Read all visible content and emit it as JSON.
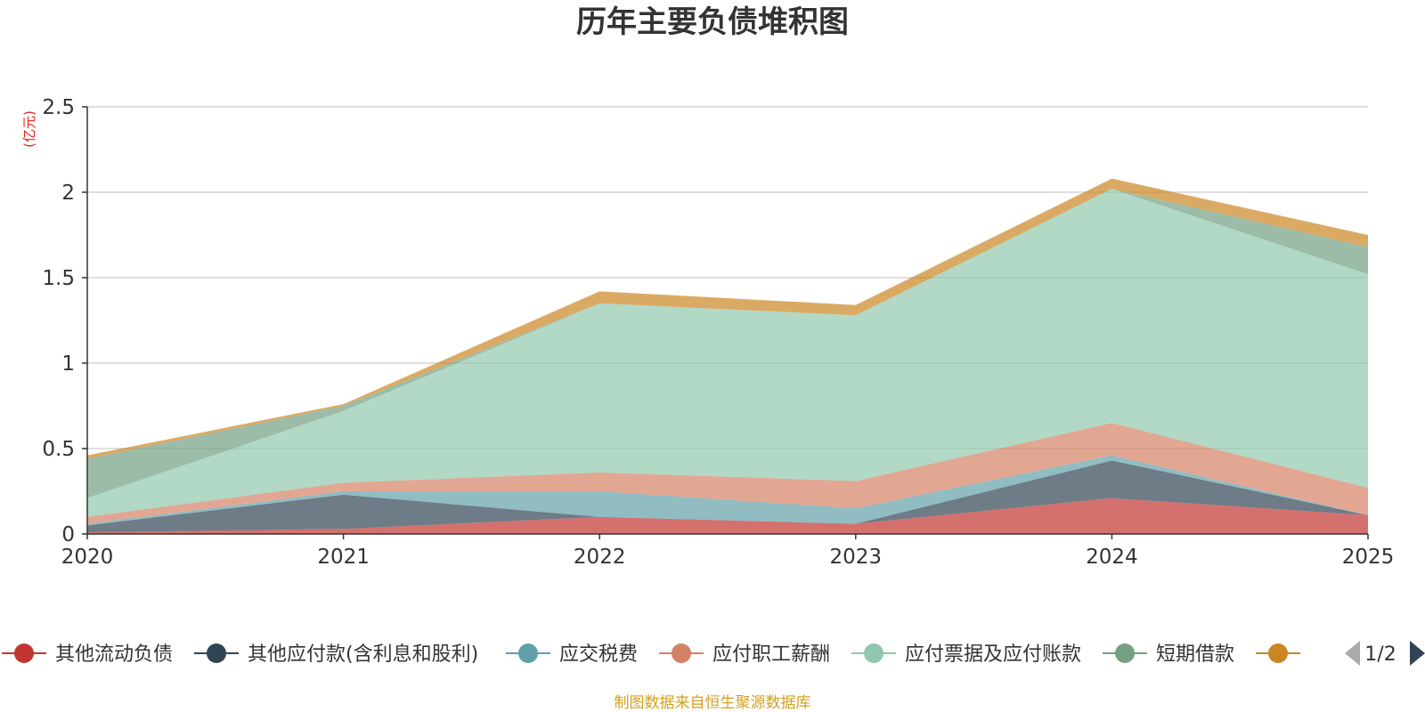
{
  "chart_data": {
    "type": "area",
    "stacked": true,
    "title": "历年主要负债堆积图",
    "ylabel": "(亿元)",
    "xlabel": "",
    "categories": [
      "2020",
      "2021",
      "2022",
      "2023",
      "2024",
      "2025"
    ],
    "ylim": [
      0,
      2.5
    ],
    "yticks": [
      0,
      0.5,
      1,
      1.5,
      2,
      2.5
    ],
    "ytick_labels": [
      "0",
      "0.5",
      "1",
      "1.5",
      "2",
      "2.5"
    ],
    "grid": true,
    "series": [
      {
        "name": "其他流动负债",
        "color": "#c23531",
        "values": [
          0.01,
          0.03,
          0.1,
          0.06,
          0.21,
          0.11
        ]
      },
      {
        "name": "其他应付款(含利息和股利)",
        "color": "#2f4554",
        "values": [
          0.04,
          0.2,
          0.0,
          0.0,
          0.22,
          0.0
        ]
      },
      {
        "name": "应交税费",
        "color": "#61a0a8",
        "values": [
          0.01,
          0.02,
          0.15,
          0.09,
          0.03,
          0.0
        ]
      },
      {
        "name": "应付职工薪酬",
        "color": "#d48265",
        "values": [
          0.04,
          0.05,
          0.11,
          0.16,
          0.19,
          0.16
        ]
      },
      {
        "name": "应付票据及应付账款",
        "color": "#91c7ae",
        "values": [
          0.11,
          0.42,
          0.99,
          0.97,
          1.37,
          1.25
        ]
      },
      {
        "name": "短期借款",
        "color": "#749f83",
        "values": [
          0.23,
          0.03,
          0.0,
          0.0,
          0.0,
          0.16
        ]
      },
      {
        "name": "",
        "color": "#ca8622",
        "values": [
          0.02,
          0.01,
          0.07,
          0.06,
          0.06,
          0.07
        ]
      }
    ],
    "legend": {
      "position": "bottom",
      "page": "1/2"
    },
    "source_note": "制图数据来自恒生聚源数据库"
  },
  "colors": {
    "axis": "#333333",
    "grid": "#cccccc",
    "unit": "#e8231b",
    "source": "#d4a020",
    "pager_inactive": "#aaaaaa",
    "pager_active": "#2f4554"
  }
}
